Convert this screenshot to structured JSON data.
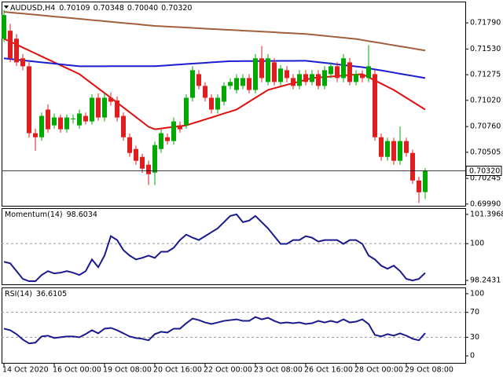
{
  "chart_data": [
    {
      "type": "candlestick",
      "title": "AUDUSD,H4",
      "ohlc_labels": [
        "0.70109",
        "0.70348",
        "0.70040",
        "0.70320"
      ],
      "categories": [
        "14 Oct 2020",
        null,
        null,
        null,
        null,
        null,
        null,
        null,
        "16 Oct 00:00",
        null,
        null,
        null,
        null,
        null,
        null,
        null,
        "19 Oct 08:00",
        null,
        null,
        null,
        null,
        null,
        null,
        null,
        "20 Oct 16:00",
        null,
        null,
        null,
        null,
        null,
        null,
        null,
        "22 Oct 00:00",
        null,
        null,
        null,
        null,
        null,
        null,
        null,
        "23 Oct 08:00",
        null,
        null,
        null,
        null,
        null,
        null,
        null,
        "26 Oct 16:00",
        null,
        null,
        null,
        null,
        null,
        null,
        null,
        "28 Oct 00:00",
        null,
        null,
        null,
        null,
        null,
        null,
        null,
        "29 Oct 08:00",
        null,
        null,
        null
      ],
      "open": [
        0.71633,
        0.71712,
        0.71633,
        0.71438,
        0.71359,
        0.70694,
        0.70654,
        0.70929,
        0.70772,
        0.7085,
        0.70733,
        0.70835,
        0.70772,
        0.70866,
        0.70811,
        0.71046,
        0.7085,
        0.71046,
        0.7102,
        0.70866,
        0.70654,
        0.70537,
        0.70459,
        0.70381,
        0.70303,
        0.70537,
        0.70654,
        0.70616,
        0.70772,
        0.70772,
        0.71046,
        0.71281,
        0.71164,
        0.71046,
        0.70929,
        0.71007,
        0.71164,
        0.71124,
        0.71164,
        0.71242,
        0.71124,
        0.71438,
        0.71203,
        0.71398,
        0.71203,
        0.7132,
        0.71242,
        0.71164,
        0.71281,
        0.71203,
        0.71281,
        0.71164,
        0.71281,
        0.71359,
        0.71242,
        0.71398,
        0.71203,
        0.71281,
        0.71242,
        0.71281,
        0.70654,
        0.70459,
        0.70616,
        0.7042,
        0.70616,
        0.70498,
        0.70224,
        0.70109
      ],
      "high": [
        0.7192,
        0.7178,
        0.7168,
        0.7148,
        0.714,
        0.7074,
        0.709,
        0.7098,
        0.7089,
        0.7088,
        0.7088,
        0.7088,
        0.7093,
        0.709,
        0.7108,
        0.7109,
        0.7109,
        0.711,
        0.7106,
        0.709,
        0.7069,
        0.7057,
        0.7049,
        0.7042,
        0.7061,
        0.7073,
        0.7069,
        0.7085,
        0.7081,
        0.7108,
        0.7136,
        0.7132,
        0.712,
        0.7108,
        0.7108,
        0.712,
        0.7124,
        0.7128,
        0.7128,
        0.7128,
        0.7148,
        0.7156,
        0.7148,
        0.7144,
        0.7137,
        0.7136,
        0.7128,
        0.7132,
        0.7132,
        0.7132,
        0.7132,
        0.7136,
        0.714,
        0.714,
        0.7148,
        0.7144,
        0.7132,
        0.7132,
        0.7157,
        0.7132,
        0.7069,
        0.7065,
        0.7065,
        0.7076,
        0.7065,
        0.7053,
        0.7026,
        0.70348
      ],
      "low": [
        0.716,
        0.714,
        0.7136,
        0.7132,
        0.7065,
        0.7052,
        0.7062,
        0.707,
        0.7074,
        0.707,
        0.707,
        0.7079,
        0.7074,
        0.7078,
        0.7078,
        0.7082,
        0.7081,
        0.7097,
        0.7081,
        0.7062,
        0.7046,
        0.7038,
        0.703,
        0.7018,
        0.7018,
        0.705,
        0.7058,
        0.7058,
        0.707,
        0.7074,
        0.7101,
        0.7113,
        0.7101,
        0.7089,
        0.7089,
        0.7097,
        0.7113,
        0.7109,
        0.7113,
        0.7109,
        0.7109,
        0.712,
        0.7117,
        0.7117,
        0.7117,
        0.712,
        0.7113,
        0.7113,
        0.7117,
        0.7117,
        0.7113,
        0.7113,
        0.7124,
        0.712,
        0.712,
        0.7117,
        0.7117,
        0.712,
        0.712,
        0.7062,
        0.7042,
        0.7042,
        0.7038,
        0.7038,
        0.7046,
        0.7019,
        0.7,
        0.7004
      ],
      "close": [
        0.71868,
        0.71438,
        0.71398,
        0.71359,
        0.70694,
        0.70654,
        0.70866,
        0.70733,
        0.7085,
        0.70733,
        0.7085,
        0.7084,
        0.7089,
        0.70811,
        0.71046,
        0.7085,
        0.71046,
        0.71007,
        0.7085,
        0.70654,
        0.70498,
        0.7042,
        0.70342,
        0.70287,
        0.70576,
        0.70694,
        0.70616,
        0.70811,
        0.70733,
        0.71046,
        0.7132,
        0.71164,
        0.71046,
        0.70929,
        0.71046,
        0.71164,
        0.71203,
        0.71242,
        0.71242,
        0.71124,
        0.71438,
        0.71242,
        0.71438,
        0.71203,
        0.71336,
        0.71242,
        0.71164,
        0.71281,
        0.71203,
        0.71281,
        0.71164,
        0.7132,
        0.71359,
        0.71242,
        0.71438,
        0.71203,
        0.71281,
        0.71242,
        0.71359,
        0.70654,
        0.70459,
        0.70616,
        0.7042,
        0.70616,
        0.70498,
        0.70224,
        0.70107,
        0.7032
      ],
      "color_up": "#00a800",
      "color_down": "#e01e1e",
      "series": [
        {
          "color": "#e01010",
          "values": [
            0.71633,
            0.71604,
            0.71575,
            0.71545,
            0.71516,
            0.71487,
            0.71457,
            0.71428,
            0.71399,
            0.71369,
            0.7134,
            0.71311,
            0.71281,
            0.71234,
            0.71187,
            0.7114,
            0.71093,
            0.71046,
            0.70998,
            0.7095,
            0.70902,
            0.70854,
            0.70806,
            0.70758,
            0.70733,
            0.70741,
            0.70749,
            0.70756,
            0.70764,
            0.70772,
            0.70792,
            0.70811,
            0.70831,
            0.7085,
            0.7087,
            0.7089,
            0.70909,
            0.70929,
            0.70968,
            0.71007,
            0.71046,
            0.71085,
            0.71124,
            0.71141,
            0.71158,
            0.71175,
            0.71192,
            0.71208,
            0.71225,
            0.71242,
            0.71247,
            0.71252,
            0.71257,
            0.71262,
            0.71267,
            0.71272,
            0.71276,
            0.71281,
            0.7125,
            0.71218,
            0.71187,
            0.71155,
            0.71124,
            0.71085,
            0.71046,
            0.71007,
            0.70968,
            0.70929
          ]
        },
        {
          "color": "#1c1cd0",
          "values": [
            0.71438,
            0.71431,
            0.71425,
            0.71418,
            0.71412,
            0.71405,
            0.71398,
            0.71392,
            0.71385,
            0.71379,
            0.71372,
            0.71366,
            0.71359,
            0.71359,
            0.71359,
            0.71359,
            0.71359,
            0.7136,
            0.7136,
            0.7136,
            0.7136,
            0.7136,
            0.7136,
            0.7136,
            0.7136,
            0.71364,
            0.71368,
            0.71373,
            0.71377,
            0.71381,
            0.71385,
            0.71389,
            0.71393,
            0.71398,
            0.71402,
            0.71406,
            0.7141,
            0.7141,
            0.71411,
            0.71411,
            0.71411,
            0.71412,
            0.71412,
            0.71412,
            0.71413,
            0.71413,
            0.71413,
            0.71414,
            0.71414,
            0.71407,
            0.714,
            0.71393,
            0.71386,
            0.71378,
            0.71371,
            0.71364,
            0.71357,
            0.7135,
            0.71339,
            0.71328,
            0.71318,
            0.71307,
            0.71296,
            0.71285,
            0.71274,
            0.71264,
            0.71253,
            0.71242
          ]
        },
        {
          "color": "#a0603c",
          "values": [
            0.719,
            0.71894,
            0.71888,
            0.71883,
            0.71877,
            0.71871,
            0.71865,
            0.71859,
            0.71853,
            0.71848,
            0.71842,
            0.71836,
            0.7183,
            0.71824,
            0.71818,
            0.71813,
            0.71807,
            0.71801,
            0.71795,
            0.71789,
            0.71783,
            0.71778,
            0.71772,
            0.71766,
            0.7176,
            0.71757,
            0.71753,
            0.7175,
            0.71747,
            0.71743,
            0.7174,
            0.71737,
            0.71733,
            0.7173,
            0.71727,
            0.71723,
            0.7172,
            0.71717,
            0.71713,
            0.7171,
            0.71707,
            0.71703,
            0.717,
            0.71697,
            0.71693,
            0.7169,
            0.71687,
            0.71683,
            0.7168,
            0.71674,
            0.71668,
            0.71661,
            0.71655,
            0.71649,
            0.71643,
            0.71636,
            0.7163,
            0.7162,
            0.71609,
            0.71599,
            0.71589,
            0.71578,
            0.71568,
            0.71557,
            0.71547,
            0.71537,
            0.71526,
            0.71516
          ]
        }
      ],
      "current_price": {
        "value": 0.7032,
        "label": "0.70320"
      },
      "ylim": [
        0.69973,
        0.71994
      ],
      "yticks": [
        {
          "value": 0.7179,
          "label": "0.71790"
        },
        {
          "value": 0.7153,
          "label": "0.71530"
        },
        0.71275,
        {
          "value": 0.7102,
          "label": "0.71020"
        },
        {
          "value": 0.7076,
          "label": "0.70760"
        },
        0.70505,
        0.70245,
        {
          "value": 0.6999,
          "label": "0.69990"
        }
      ]
    },
    {
      "type": "line",
      "title": "Momentum(14)",
      "series": [
        {
          "color": "#1a1a8c",
          "values": [
            99.133,
            99.059,
            98.688,
            98.317,
            98.206,
            98.206,
            98.502,
            98.688,
            98.577,
            98.614,
            98.688,
            98.614,
            98.502,
            98.688,
            99.244,
            98.873,
            99.43,
            100.358,
            100.172,
            99.69,
            99.43,
            99.244,
            99.319,
            99.43,
            99.319,
            99.615,
            99.615,
            99.801,
            100.172,
            100.432,
            100.284,
            100.172,
            100.358,
            100.543,
            100.729,
            101.026,
            101.323,
            101.3968,
            101.026,
            101.1,
            101.323,
            101.026,
            100.729,
            100.358,
            99.987,
            99.987,
            100.172,
            100.172,
            100.358,
            100.284,
            100.098,
            100.172,
            100.172,
            100.172,
            99.987,
            100.172,
            100.172,
            99.987,
            99.43,
            99.244,
            98.948,
            98.8,
            98.948,
            98.688,
            98.317,
            98.2431,
            98.317,
            98.6034
          ]
        }
      ],
      "levels": [
        100
      ],
      "ylim": [
        98.0576,
        101.6565
      ],
      "yticks": [
        98.2431,
        100,
        101.3968
      ]
    },
    {
      "type": "line",
      "title": "RSI(14)",
      "series": [
        {
          "color": "#1a1a8c",
          "values": [
            43.75,
            41.25,
            35,
            26.25,
            20,
            21.25,
            31.25,
            32.5,
            28.75,
            30,
            31.25,
            31.25,
            30,
            35,
            41.25,
            36.25,
            43.75,
            45,
            41.25,
            36.25,
            31.25,
            28.75,
            27.5,
            25,
            35,
            38.75,
            37.5,
            43.75,
            43.75,
            52.5,
            60,
            57.5,
            53.75,
            51.25,
            53.75,
            56.25,
            57.5,
            58.75,
            56.25,
            56.25,
            62.5,
            58.75,
            61.25,
            56.25,
            52.5,
            53.75,
            52.5,
            53.75,
            51.25,
            52.5,
            56.25,
            53.75,
            56.25,
            53.75,
            58.75,
            53.75,
            55,
            58.75,
            51.25,
            33.75,
            31.25,
            35,
            32.5,
            36.25,
            32.5,
            27.5,
            25,
            36.6105
          ]
        }
      ],
      "levels": [
        30,
        70
      ],
      "ylim": [
        -11.25,
        108.75
      ],
      "yticks": [
        0,
        30,
        70,
        100
      ]
    }
  ]
}
